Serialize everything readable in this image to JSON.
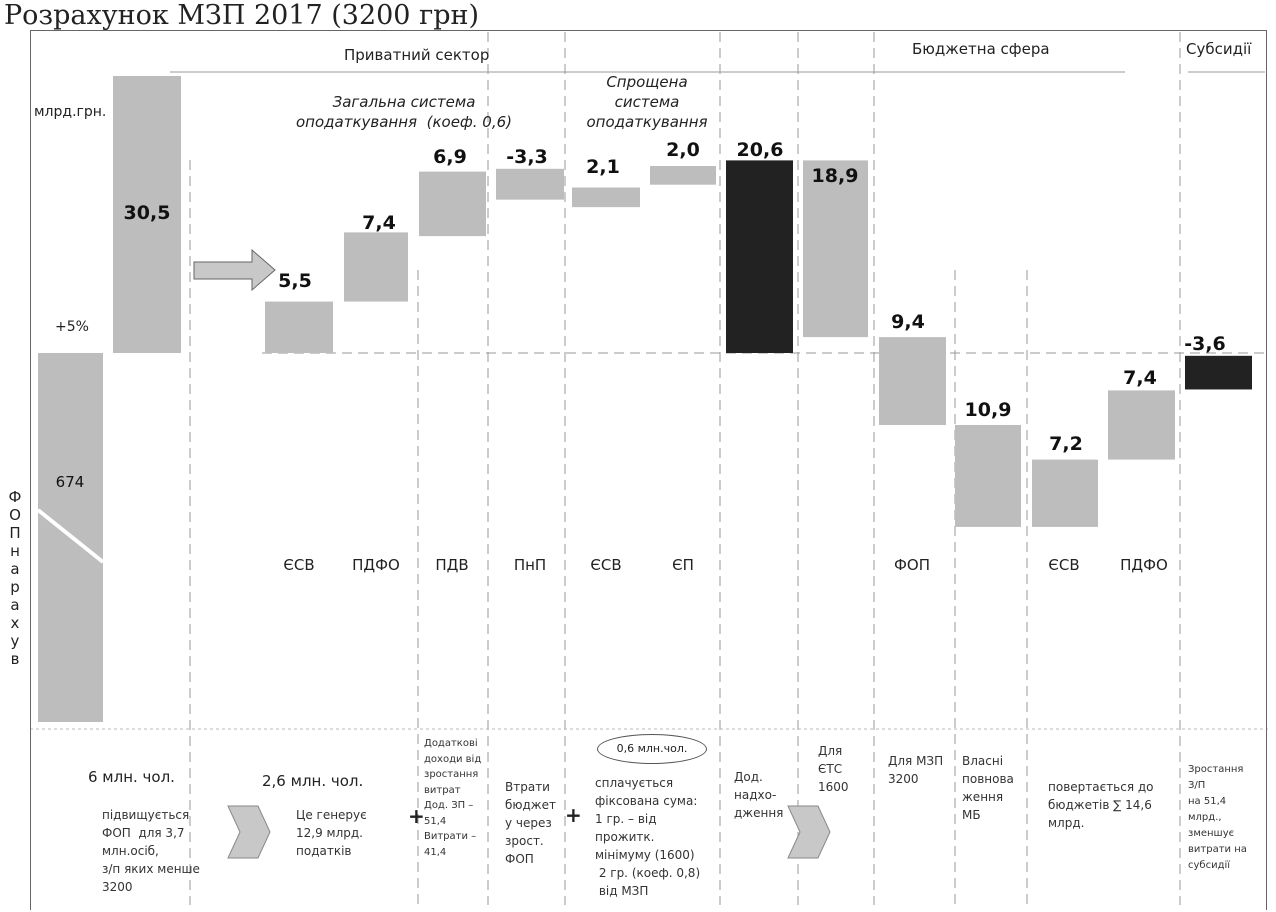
{
  "title": "Розрахунок МЗП 2017 (3200 грн)",
  "colors": {
    "bar": "#bdbdbd",
    "highlight": "#222222",
    "grid": "#9a9a9a"
  },
  "header": {
    "private_sector": "Приватний сектор",
    "budget_sphere": "Бюджетна сфера",
    "subsidies": "Субсидії",
    "general_system": "Загальна система\nоподаткування  (коеф. 0,6)",
    "simplified_system": "Спрощена\nсистема\nоподаткування"
  },
  "unit_label": "млрд.грн.",
  "pct_label": "+5%",
  "fop_vertical": "ФОП нарахув",
  "chart_data": {
    "type": "bar",
    "title": "Розрахунок МЗП 2017 (3200 грн)",
    "ylabel": "млрд.грн.",
    "note": "waterfall chart",
    "base": {
      "label": "ФОП нарахув",
      "value": 674
    },
    "increase": {
      "label": "+5%",
      "value": 30.5
    },
    "categories": [
      "ЄСВ",
      "ПДФО",
      "ПДВ",
      "ПнП",
      "ЄСВ",
      "ЄП",
      "",
      "",
      "ФОП",
      "",
      "ЄСВ",
      "ПДФО",
      ""
    ],
    "values": [
      5.5,
      7.4,
      6.9,
      -3.3,
      2.1,
      2.0,
      20.6,
      18.9,
      9.4,
      10.9,
      7.2,
      7.4,
      -3.6
    ],
    "value_labels": [
      "5,5",
      "7,4",
      "6,9",
      "-3,3",
      "2,1",
      "2,0",
      "20,6",
      "18,9",
      "9,4",
      "10,9",
      "7,2",
      "7,4",
      "-3,6"
    ],
    "dark": [
      false,
      false,
      false,
      false,
      false,
      false,
      true,
      false,
      false,
      false,
      false,
      false,
      true
    ],
    "groups": [
      "Приватний сектор",
      "Бюджетна сфера",
      "Субсидії"
    ]
  },
  "bottom": {
    "six_mln": "6 млн. чол.",
    "two_six_mln": "2,6 млн. чол.",
    "raise_text": "підвищується\nФОП  для 3,7\nмлн.осіб,\nз/п яких менше\n3200",
    "generates_text": "Це генерує\n12,9 млрд.\nподатків",
    "additional_income": "Додаткові\nдоходи від\nзростання\nвитрат\nДод. ЗП –\n51,4\nВитрати –\n41,4",
    "budget_loss": "Втрати\nбюджет\nу через\nзрост.\nФОП",
    "oval_text": "0,6 млн.чол.",
    "fixed_sum": "сплачується\nфіксована сума:\n1 гр. – від\nпрожитк.\nмінімуму (1600)\n 2 гр. (коеф. 0,8)\n від МЗП",
    "add_revenue": "Дод.\nнадхо-\nдження",
    "for_ets": "Для\nЄТС\n1600",
    "for_mzp": "Для МЗП\n3200",
    "own_powers": "Власні\nповнова\nження\nМБ",
    "returns_text": "повертається до\nбюджетів ∑ 14,6\nмлрд.",
    "subsidy_text": "Зростання\nЗ/П\nна 51,4\nмлрд.,\nзменшує\nвитрати на\nсубсидії",
    "plus1": "+",
    "plus2": "+"
  }
}
